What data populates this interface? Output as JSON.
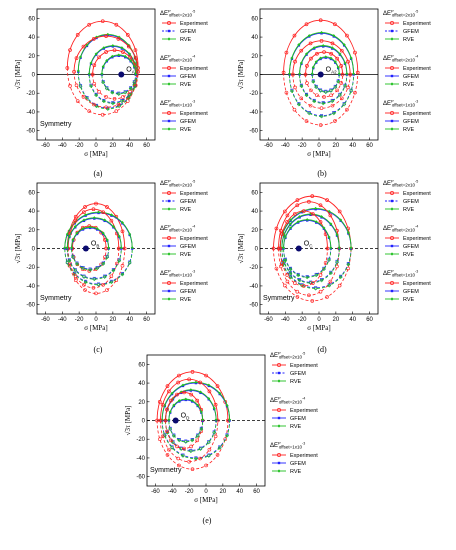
{
  "chart_data": [
    {
      "panel": "(a)",
      "type": "line",
      "xlabel": "σ [MPa]",
      "ylabel": "√3τ [MPa]",
      "xlim": [
        -70,
        70
      ],
      "ylim": [
        -70,
        70
      ],
      "xticks": [
        -60,
        -40,
        -20,
        0,
        20,
        40,
        60
      ],
      "yticks": [
        -60,
        -40,
        -20,
        0,
        20,
        40,
        60
      ],
      "annotation": "Symmetry",
      "origin_label": "O_A",
      "origin_point": [
        30,
        0
      ],
      "legend_groups": [
        {
          "title": "ΔE^p_offset=2x10^-5",
          "items": [
            "Experiment",
            "GFEM",
            "RVE"
          ]
        },
        {
          "title": "ΔE^p_offset=2x10^-4",
          "items": [
            "Experiment",
            "GFEM",
            "RVE"
          ]
        },
        {
          "title": "ΔE^p_offset=1x10^-3",
          "items": [
            "Experiment",
            "GFEM",
            "RVE"
          ]
        }
      ],
      "loci": [
        {
          "offset": "2x10^-5",
          "series": "Experiment",
          "cx": 8,
          "cy": 7,
          "rx": 42,
          "ry": 50
        },
        {
          "offset": "2x10^-5",
          "series": "GFEM",
          "cx": 14,
          "cy": 3,
          "rx": 35,
          "ry": 39
        },
        {
          "offset": "2x10^-5",
          "series": "RVE",
          "cx": 14,
          "cy": 3,
          "rx": 35,
          "ry": 39
        },
        {
          "offset": "2x10^-4",
          "series": "Experiment",
          "cx": 12,
          "cy": 3,
          "rx": 38,
          "ry": 38
        },
        {
          "offset": "2x10^-4",
          "series": "GFEM",
          "cx": 20,
          "cy": 0,
          "rx": 28,
          "ry": 30
        },
        {
          "offset": "2x10^-4",
          "series": "RVE",
          "cx": 20,
          "cy": 0,
          "rx": 28,
          "ry": 30
        },
        {
          "offset": "1x10^-3",
          "series": "Experiment",
          "cx": 22,
          "cy": 0,
          "rx": 26,
          "ry": 26
        },
        {
          "offset": "1x10^-3",
          "series": "GFEM",
          "cx": 27,
          "cy": 0,
          "rx": 20,
          "ry": 20
        },
        {
          "offset": "1x10^-3",
          "series": "RVE",
          "cx": 27,
          "cy": 0,
          "rx": 20,
          "ry": 20
        }
      ]
    },
    {
      "panel": "(b)",
      "type": "line",
      "xlabel": "σ [MPa]",
      "ylabel": "√3τ [MPa]",
      "xlim": [
        -70,
        70
      ],
      "ylim": [
        -70,
        70
      ],
      "xticks": [
        -60,
        -40,
        -20,
        0,
        20,
        40,
        60
      ],
      "yticks": [
        -60,
        -40,
        -20,
        0,
        20,
        40,
        60
      ],
      "annotation": "",
      "origin_label": "O_A2",
      "origin_point": [
        2,
        0
      ],
      "legend_groups": [
        {
          "title": "ΔE^p_offset=2x10^-5",
          "items": [
            "Experiment",
            "GFEM",
            "RVE"
          ]
        },
        {
          "title": "ΔE^p_offset=2x10^-4",
          "items": [
            "Experiment",
            "GFEM",
            "RVE"
          ]
        },
        {
          "title": "ΔE^p_offset=1x10^-3",
          "items": [
            "Experiment",
            "GFEM",
            "RVE"
          ]
        }
      ],
      "loci": [
        {
          "offset": "2x10^-5",
          "series": "Experiment",
          "cx": 2,
          "cy": 2,
          "rx": 44,
          "ry": 56
        },
        {
          "offset": "2x10^-5",
          "series": "GFEM",
          "cx": 3,
          "cy": 0,
          "rx": 38,
          "ry": 44
        },
        {
          "offset": "2x10^-5",
          "series": "RVE",
          "cx": 3,
          "cy": 0,
          "rx": 38,
          "ry": 44
        },
        {
          "offset": "2x10^-4",
          "series": "Experiment",
          "cx": 3,
          "cy": 0,
          "rx": 34,
          "ry": 36
        },
        {
          "offset": "2x10^-4",
          "series": "GFEM",
          "cx": 5,
          "cy": 0,
          "rx": 28,
          "ry": 30
        },
        {
          "offset": "2x10^-4",
          "series": "RVE",
          "cx": 5,
          "cy": 0,
          "rx": 28,
          "ry": 30
        },
        {
          "offset": "1x10^-3",
          "series": "Experiment",
          "cx": 6,
          "cy": 0,
          "rx": 22,
          "ry": 24
        },
        {
          "offset": "1x10^-3",
          "series": "GFEM",
          "cx": 8,
          "cy": 0,
          "rx": 16,
          "ry": 18
        },
        {
          "offset": "1x10^-3",
          "series": "RVE",
          "cx": 8,
          "cy": 0,
          "rx": 16,
          "ry": 18
        }
      ]
    },
    {
      "panel": "(c)",
      "type": "line",
      "xlabel": "σ [MPa]",
      "ylabel": "√3τ [MPa]",
      "xlim": [
        -70,
        70
      ],
      "ylim": [
        -70,
        70
      ],
      "xticks": [
        -60,
        -40,
        -20,
        0,
        20,
        40,
        60
      ],
      "yticks": [
        -60,
        -40,
        -20,
        0,
        20,
        40,
        60
      ],
      "annotation": "Symmetry",
      "origin_label": "O_B",
      "origin_point": [
        -12,
        0
      ],
      "legend_groups": [
        {
          "title": "ΔE^p_offset=2x10^-5",
          "items": [
            "Experiment",
            "GFEM",
            "RVE"
          ]
        },
        {
          "title": "ΔE^p_offset=2x10^-4",
          "items": [
            "Experiment",
            "GFEM",
            "RVE"
          ]
        },
        {
          "title": "ΔE^p_offset=1x10^-3",
          "items": [
            "Experiment",
            "GFEM",
            "RVE"
          ]
        }
      ],
      "loci": [
        {
          "offset": "2x10^-5",
          "series": "Experiment",
          "cx": 0,
          "cy": 0,
          "rx": 34,
          "ry": 48
        },
        {
          "offset": "2x10^-5",
          "series": "GFEM",
          "cx": 3,
          "cy": 0,
          "rx": 40,
          "ry": 38
        },
        {
          "offset": "2x10^-5",
          "series": "RVE",
          "cx": 3,
          "cy": 0,
          "rx": 40,
          "ry": 38
        },
        {
          "offset": "2x10^-4",
          "series": "Experiment",
          "cx": -3,
          "cy": 0,
          "rx": 30,
          "ry": 42
        },
        {
          "offset": "2x10^-4",
          "series": "GFEM",
          "cx": -2,
          "cy": 0,
          "rx": 32,
          "ry": 32
        },
        {
          "offset": "2x10^-4",
          "series": "RVE",
          "cx": -2,
          "cy": 0,
          "rx": 32,
          "ry": 32
        },
        {
          "offset": "1x10^-3",
          "series": "Experiment",
          "cx": -8,
          "cy": 0,
          "rx": 20,
          "ry": 24
        },
        {
          "offset": "1x10^-3",
          "series": "GFEM",
          "cx": -7,
          "cy": 0,
          "rx": 22,
          "ry": 22
        },
        {
          "offset": "1x10^-3",
          "series": "RVE",
          "cx": -7,
          "cy": 0,
          "rx": 22,
          "ry": 22
        }
      ]
    },
    {
      "panel": "(d)",
      "type": "line",
      "xlabel": "σ [MPa]",
      "ylabel": "√3τ [MPa]",
      "xlim": [
        -70,
        70
      ],
      "ylim": [
        -70,
        70
      ],
      "xticks": [
        -60,
        -40,
        -20,
        0,
        20,
        40,
        60
      ],
      "yticks": [
        -60,
        -40,
        -20,
        0,
        20,
        40,
        60
      ],
      "annotation": "Symmetry",
      "origin_label": "O_C",
      "origin_point": [
        -24,
        0
      ],
      "legend_groups": [
        {
          "title": "ΔE^p_offset=2x10^-5",
          "items": [
            "Experiment",
            "GFEM",
            "RVE"
          ]
        },
        {
          "title": "ΔE^p_offset=2x10^-4",
          "items": [
            "Experiment",
            "GFEM",
            "RVE"
          ]
        },
        {
          "title": "ΔE^p_offset=1x10^-3",
          "items": [
            "Experiment",
            "GFEM",
            "RVE"
          ]
        }
      ],
      "loci": [
        {
          "offset": "2x10^-5",
          "series": "Experiment",
          "cx": -8,
          "cy": 0,
          "rx": 46,
          "ry": 56
        },
        {
          "offset": "2x10^-5",
          "series": "GFEM",
          "cx": -4,
          "cy": 0,
          "rx": 42,
          "ry": 42
        },
        {
          "offset": "2x10^-5",
          "series": "RVE",
          "cx": -4,
          "cy": 0,
          "rx": 42,
          "ry": 42
        },
        {
          "offset": "2x10^-4",
          "series": "Experiment",
          "cx": -12,
          "cy": 0,
          "rx": 36,
          "ry": 50
        },
        {
          "offset": "2x10^-4",
          "series": "GFEM",
          "cx": -10,
          "cy": 0,
          "rx": 34,
          "ry": 36
        },
        {
          "offset": "2x10^-4",
          "series": "RVE",
          "cx": -10,
          "cy": 0,
          "rx": 34,
          "ry": 36
        },
        {
          "offset": "1x10^-3",
          "series": "Experiment",
          "cx": -18,
          "cy": 0,
          "rx": 28,
          "ry": 40
        },
        {
          "offset": "1x10^-3",
          "series": "GFEM",
          "cx": -14,
          "cy": 0,
          "rx": 28,
          "ry": 30
        },
        {
          "offset": "1x10^-3",
          "series": "RVE",
          "cx": -14,
          "cy": 0,
          "rx": 28,
          "ry": 30
        }
      ]
    },
    {
      "panel": "(e)",
      "type": "line",
      "xlabel": "σ [MPa]",
      "ylabel": "√3τ [MPa]",
      "xlim": [
        -70,
        70
      ],
      "ylim": [
        -70,
        70
      ],
      "xticks": [
        -60,
        -40,
        -20,
        0,
        20,
        40,
        60
      ],
      "yticks": [
        -60,
        -40,
        -20,
        0,
        20,
        40,
        60
      ],
      "annotation": "Symmetry",
      "origin_label": "O_D",
      "origin_point": [
        -36,
        0
      ],
      "legend_groups": [
        {
          "title": "ΔE^p_offset=2x10^-5",
          "items": [
            "Experiment",
            "GFEM",
            "RVE"
          ]
        },
        {
          "title": "ΔE^p_offset=2x10^-4",
          "items": [
            "Experiment",
            "GFEM",
            "RVE"
          ]
        },
        {
          "title": "ΔE^p_offset=1x10^-3",
          "items": [
            "Experiment",
            "GFEM",
            "RVE"
          ]
        }
      ],
      "loci": [
        {
          "offset": "2x10^-5",
          "series": "Experiment",
          "cx": -16,
          "cy": 0,
          "rx": 42,
          "ry": 52
        },
        {
          "offset": "2x10^-5",
          "series": "GFEM",
          "cx": -12,
          "cy": 0,
          "rx": 40,
          "ry": 40
        },
        {
          "offset": "2x10^-5",
          "series": "RVE",
          "cx": -12,
          "cy": 0,
          "rx": 40,
          "ry": 40
        },
        {
          "offset": "2x10^-4",
          "series": "Experiment",
          "cx": -20,
          "cy": 0,
          "rx": 34,
          "ry": 44
        },
        {
          "offset": "2x10^-4",
          "series": "GFEM",
          "cx": -18,
          "cy": 0,
          "rx": 30,
          "ry": 32
        },
        {
          "offset": "2x10^-4",
          "series": "RVE",
          "cx": -18,
          "cy": 0,
          "rx": 30,
          "ry": 32
        },
        {
          "offset": "1x10^-3",
          "series": "Experiment",
          "cx": -26,
          "cy": 0,
          "rx": 22,
          "ry": 30
        },
        {
          "offset": "1x10^-3",
          "series": "GFEM",
          "cx": -24,
          "cy": 0,
          "rx": 20,
          "ry": 22
        },
        {
          "offset": "1x10^-3",
          "series": "RVE",
          "cx": -24,
          "cy": 0,
          "rx": 20,
          "ry": 22
        }
      ]
    }
  ],
  "colors": {
    "Experiment": "#ff2020",
    "GFEM": "#2020ff",
    "RVE": "#20c020"
  },
  "markers": {
    "Experiment": "open-circle",
    "GFEM": "filled-square",
    "RVE": "filled-diamond"
  }
}
